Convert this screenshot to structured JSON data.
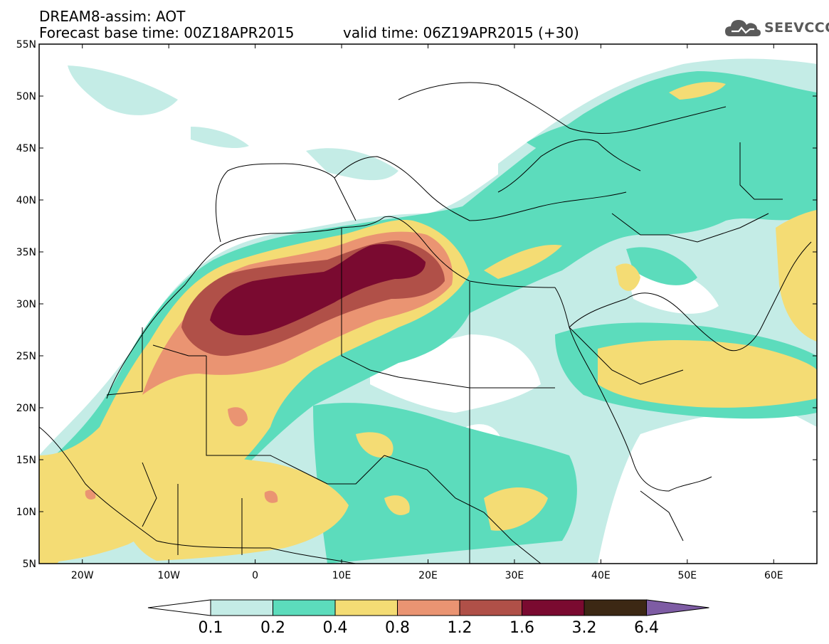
{
  "title": {
    "line1": "DREAM8-assim: AOT",
    "line2": "Forecast base time: 00Z18APR2015",
    "valid": "valid time: 06Z19APR2015 (+30)"
  },
  "logo": {
    "text": "SEEVCCC",
    "icon": "cloud-icon"
  },
  "map": {
    "lat_labels": [
      "55N",
      "50N",
      "45N",
      "40N",
      "35N",
      "30N",
      "25N",
      "20N",
      "15N",
      "10N",
      "5N"
    ],
    "lon_labels": [
      "20W",
      "10W",
      "0",
      "10E",
      "20E",
      "30E",
      "40E",
      "50E",
      "60E"
    ],
    "lat_range": [
      5,
      55
    ],
    "lon_range": [
      -25,
      65
    ]
  },
  "colorbar": {
    "labels": [
      "0.1",
      "0.2",
      "0.4",
      "0.8",
      "1.2",
      "1.6",
      "3.2",
      "6.4"
    ],
    "colors": [
      "#ffffff",
      "#c4ece6",
      "#5cdcbc",
      "#f4dc74",
      "#ea9472",
      "#b05048",
      "#7a0a30",
      "#3c2814",
      "#7e5ca4"
    ]
  }
}
